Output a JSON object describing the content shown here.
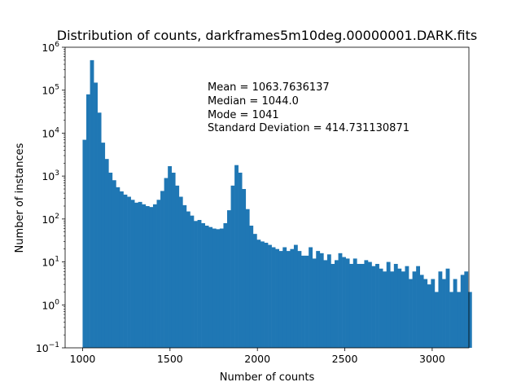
{
  "chart_data": {
    "type": "bar",
    "title": "Distribution of counts, darkframes5m10deg.00000001.DARK.fits",
    "xlabel": "Number of counts",
    "ylabel": "Number of instances",
    "xlim": [
      900,
      3210
    ],
    "ylim": [
      0.1,
      1000000
    ],
    "yscale": "log",
    "bar_color": "#1f77b4",
    "grid": false,
    "x_ticks": [
      {
        "value": 1000,
        "label": "1000"
      },
      {
        "value": 1500,
        "label": "1500"
      },
      {
        "value": 2000,
        "label": "2000"
      },
      {
        "value": 2500,
        "label": "2500"
      },
      {
        "value": 3000,
        "label": "3000"
      }
    ],
    "y_ticks": [
      {
        "value": 0.1,
        "base": "10",
        "exp": "−1"
      },
      {
        "value": 1,
        "base": "10",
        "exp": "0"
      },
      {
        "value": 10,
        "base": "10",
        "exp": "1"
      },
      {
        "value": 100,
        "base": "10",
        "exp": "2"
      },
      {
        "value": 1000,
        "base": "10",
        "exp": "3"
      },
      {
        "value": 10000,
        "base": "10",
        "exp": "4"
      },
      {
        "value": 100000,
        "base": "10",
        "exp": "5"
      },
      {
        "value": 1000000,
        "base": "10",
        "exp": "6"
      }
    ],
    "annotations": [
      "Mean = 1063.7636137",
      "Median = 1044.0",
      "Mode = 1041",
      "Standard Deviation = 414.731130871"
    ],
    "bin_start": 1000,
    "bin_width": 21.2,
    "values": [
      7000,
      80000,
      500000,
      150000,
      30000,
      6000,
      2500,
      1200,
      800,
      550,
      440,
      370,
      330,
      280,
      240,
      250,
      220,
      200,
      190,
      220,
      280,
      450,
      900,
      1700,
      1200,
      600,
      330,
      210,
      150,
      120,
      90,
      95,
      80,
      70,
      65,
      60,
      58,
      60,
      80,
      160,
      600,
      1800,
      1200,
      500,
      170,
      70,
      45,
      33,
      30,
      28,
      25,
      22,
      20,
      18,
      22,
      18,
      20,
      25,
      18,
      14,
      14,
      22,
      12,
      18,
      16,
      11,
      15,
      9,
      11,
      16,
      13,
      12,
      9,
      12,
      9,
      9,
      11,
      10,
      8,
      9,
      7,
      6,
      10,
      6,
      9,
      7,
      6,
      8,
      4,
      6,
      8,
      5,
      4,
      3,
      4,
      2,
      6,
      4,
      7,
      2,
      4,
      2,
      5,
      6,
      2
    ]
  }
}
